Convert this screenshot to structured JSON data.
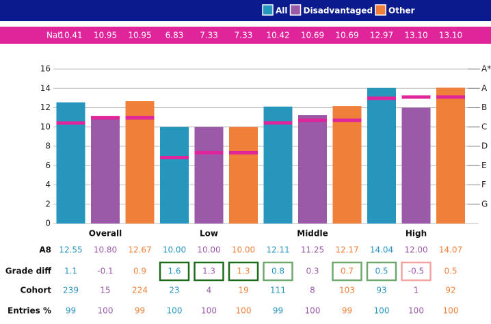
{
  "chart_data": {
    "type": "bar",
    "categories": [
      "Overall",
      "Low",
      "Middle",
      "High"
    ],
    "national_label": "Nat",
    "national_color": "#e0259b",
    "series": [
      {
        "name": "All",
        "color": "#2796bd",
        "values": [
          12.55,
          10.0,
          12.11,
          14.04
        ],
        "value_labels": [
          "12.55",
          "10.00",
          "12.11",
          "14.04"
        ],
        "national": [
          10.41,
          6.83,
          10.42,
          12.97
        ],
        "national_labels": [
          "10.41",
          "6.83",
          "10.42",
          "12.97"
        ],
        "grade_diff": [
          1.1,
          1.6,
          0.8,
          0.5
        ],
        "grade_diff_box": [
          null,
          "#1e6b1e",
          "#6fa86f",
          "#6fa86f"
        ],
        "cohort": [
          239,
          23,
          111,
          93
        ],
        "entries": [
          99,
          100,
          99,
          100
        ]
      },
      {
        "name": "Disadvantaged",
        "color": "#9b5aa8",
        "values": [
          10.8,
          10.0,
          11.25,
          12.0
        ],
        "value_labels": [
          "10.80",
          "10.00",
          "11.25",
          "12.00"
        ],
        "national": [
          10.95,
          7.33,
          10.69,
          13.1
        ],
        "national_labels": [
          "10.95",
          "7.33",
          "10.69",
          "13.10"
        ],
        "grade_diff": [
          -0.1,
          1.3,
          0.3,
          -0.5
        ],
        "grade_diff_box": [
          null,
          "#1e6b1e",
          null,
          "#f4a3a3"
        ],
        "cohort": [
          15,
          4,
          8,
          1
        ],
        "entries": [
          100,
          100,
          100,
          100
        ]
      },
      {
        "name": "Other",
        "color": "#f07f3a",
        "values": [
          12.67,
          10.0,
          12.17,
          14.07
        ],
        "value_labels": [
          "12.67",
          "10.00",
          "12.17",
          "14.07"
        ],
        "national": [
          10.95,
          7.33,
          10.69,
          13.1
        ],
        "national_labels": [
          "10.95",
          "7.33",
          "10.69",
          "13.10"
        ],
        "grade_diff": [
          0.9,
          1.3,
          0.7,
          0.5
        ],
        "grade_diff_box": [
          null,
          "#1e6b1e",
          "#6fa86f",
          null
        ],
        "cohort": [
          224,
          19,
          103,
          92
        ],
        "entries": [
          99,
          100,
          99,
          100
        ]
      }
    ],
    "row_labels": [
      "A8",
      "Grade diff",
      "Cohort",
      "Entries %"
    ],
    "ylim": [
      0,
      16
    ],
    "yticks": [
      0,
      2,
      4,
      6,
      8,
      10,
      12,
      14,
      16
    ],
    "y2ticks": [
      {
        "value": 2,
        "label": "G"
      },
      {
        "value": 4,
        "label": "F"
      },
      {
        "value": 6,
        "label": "E"
      },
      {
        "value": 8,
        "label": "D"
      },
      {
        "value": 10,
        "label": "C"
      },
      {
        "value": 12,
        "label": "B"
      },
      {
        "value": 14,
        "label": "A"
      },
      {
        "value": 16,
        "label": "A*"
      }
    ],
    "grid": true
  }
}
